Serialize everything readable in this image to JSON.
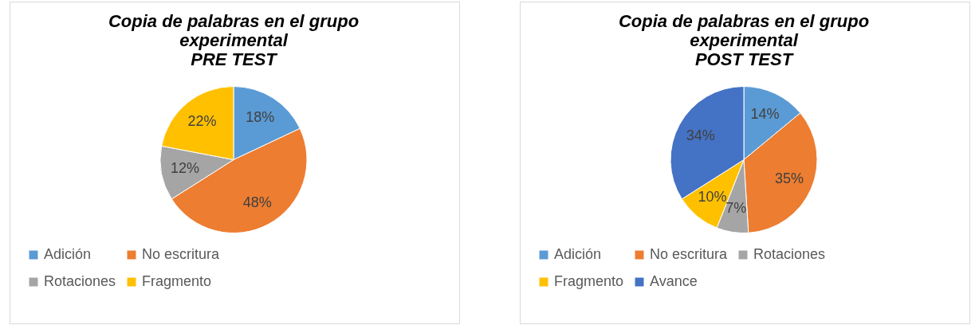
{
  "chart_data": [
    {
      "type": "pie",
      "title": "Copia de palabras en el grupo\nexperimental\nPRE TEST",
      "categories": [
        "Adición",
        "No escritura",
        "Rotaciones",
        "Fragmento"
      ],
      "values": [
        18,
        48,
        12,
        22
      ],
      "value_labels": [
        "18%",
        "48%",
        "12%",
        "22%"
      ],
      "colors": [
        "#5b9bd5",
        "#ed7d31",
        "#a5a5a5",
        "#ffc000"
      ],
      "legend": "bottom"
    },
    {
      "type": "pie",
      "title": "Copia de palabras en el grupo\nexperimental\nPOST TEST",
      "categories": [
        "Adición",
        "No escritura",
        "Rotaciones",
        "Fragmento",
        "Avance"
      ],
      "values": [
        14,
        35,
        7,
        10,
        34
      ],
      "value_labels": [
        "14%",
        "35%",
        "7%",
        "10%",
        "34%"
      ],
      "colors": [
        "#5b9bd5",
        "#ed7d31",
        "#a5a5a5",
        "#ffc000",
        "#4472c4"
      ],
      "legend": "bottom"
    }
  ]
}
